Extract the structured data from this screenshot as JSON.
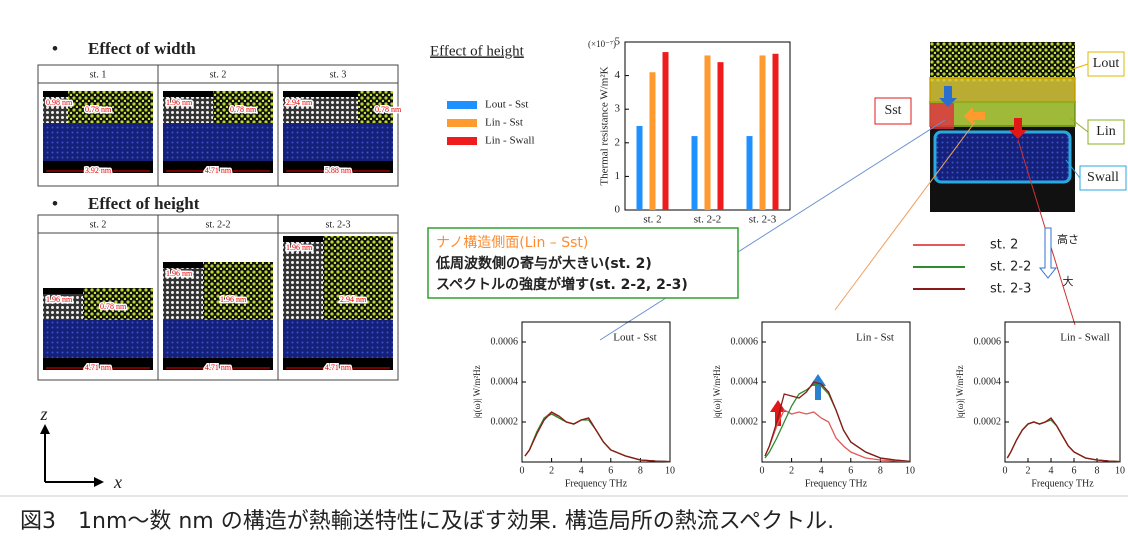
{
  "figure": {
    "width_section": {
      "title": "Effect of width",
      "columns": [
        {
          "label": "st. 1",
          "dims": [
            "0.98 nm",
            "0.78 nm",
            "3.92 nm"
          ]
        },
        {
          "label": "st. 2",
          "dims": [
            "1.96 nm",
            "0.78 nm",
            "4.71 nm"
          ]
        },
        {
          "label": "st. 3",
          "dims": [
            "2.94 nm",
            "0.78 nm",
            "5.88 nm"
          ]
        }
      ]
    },
    "height_section": {
      "title": "Effect of height",
      "columns": [
        {
          "label": "st. 2",
          "dims": [
            "1.96 nm",
            "0.78 nm",
            "4.71 nm"
          ]
        },
        {
          "label": "st. 2-2",
          "dims": [
            "1.96 nm",
            "1.96 nm",
            "4.71 nm"
          ]
        },
        {
          "label": "st. 2-3",
          "dims": [
            "1.96 nm",
            "2.94 nm",
            "4.71 nm"
          ]
        }
      ]
    },
    "axis_z": "z",
    "axis_x": "x",
    "structure_labels": {
      "out": "Lout",
      "in": "Lin",
      "st": "Sst",
      "wall": "Swall"
    },
    "annotation": [
      "ナノ構造側面(Lin – Sst)",
      "低周波数側の寄与が大きい(st. 2)",
      "スペクトルの強度が増す(st. 2-2, 2-3)"
    ],
    "height_arrow": [
      "高さ",
      "大"
    ],
    "caption": "図3　1nm〜数 nm の構造が熱輸送特性に及ぼす効果. 構造局所の熱流スペクトル."
  },
  "chart_data": [
    {
      "type": "bar",
      "title": "Effect of height",
      "y_label": "Thermal resistance W/m²K",
      "y_multiplier": "(×10⁻⁷)",
      "categories": [
        "st. 2",
        "st. 2-2",
        "st. 2-3"
      ],
      "series": [
        {
          "name": "Lout - Sst",
          "color": "#1e90ff",
          "values": [
            2.5,
            2.2,
            2.2
          ]
        },
        {
          "name": "Lin - Sst",
          "color": "#ff9a2e",
          "values": [
            4.1,
            4.6,
            4.6
          ]
        },
        {
          "name": "Lin - Swall",
          "color": "#ee1c1c",
          "values": [
            4.7,
            4.4,
            4.65
          ]
        }
      ],
      "ylim": [
        0,
        5
      ],
      "yticks": [
        0,
        1,
        2,
        3,
        4,
        5
      ]
    },
    {
      "type": "line",
      "title": "Lout - Sst",
      "x_label": "Frequency THz",
      "y_label": "|q(ω)| W/m²Hz",
      "x": [
        0.2,
        0.5,
        1,
        1.5,
        2,
        2.5,
        3,
        3.5,
        4,
        4.5,
        5,
        5.5,
        6,
        7,
        8,
        9,
        10
      ],
      "series": [
        {
          "name": "st. 2",
          "color": "#e05a5a",
          "values": [
            3e-05,
            6e-05,
            0.00015,
            0.00022,
            0.00025,
            0.00022,
            0.0002,
            0.00019,
            0.00021,
            0.00022,
            0.00016,
            0.0001,
            6e-05,
            3e-05,
            1e-05,
            5e-06,
            2e-06
          ]
        },
        {
          "name": "st. 2-2",
          "color": "#2e8b2e",
          "values": [
            3e-05,
            6e-05,
            0.00015,
            0.00022,
            0.00024,
            0.00022,
            0.0002,
            0.00019,
            0.00021,
            0.00021,
            0.00016,
            0.0001,
            6e-05,
            3e-05,
            1e-05,
            5e-06,
            2e-06
          ]
        },
        {
          "name": "st. 2-3",
          "color": "#8b1a1a",
          "values": [
            3e-05,
            6e-05,
            0.00014,
            0.00021,
            0.00025,
            0.00023,
            0.0002,
            0.00019,
            0.00021,
            0.00022,
            0.00016,
            0.0001,
            6e-05,
            3e-05,
            1e-05,
            5e-06,
            2e-06
          ]
        }
      ],
      "xlim": [
        0,
        10
      ],
      "ylim": [
        0,
        0.0007
      ],
      "xticks": [
        0,
        2,
        4,
        6,
        8,
        10
      ],
      "yticks": [
        0.0002,
        0.0004,
        0.0006
      ]
    },
    {
      "type": "line",
      "title": "Lin - Sst",
      "x_label": "Frequency THz",
      "y_label": "|q(ω)| W/m²Hz",
      "x": [
        0.2,
        0.5,
        1,
        1.5,
        2,
        2.5,
        3,
        3.5,
        4,
        4.5,
        5,
        5.5,
        6,
        7,
        8,
        9,
        10
      ],
      "series": [
        {
          "color": "#e05a5a",
          "values": [
            3e-05,
            8e-05,
            0.00018,
            0.00026,
            0.00024,
            0.00025,
            0.00024,
            0.00025,
            0.00022,
            0.0002,
            0.00012,
            8e-05,
            5e-05,
            2e-05,
            1e-05,
            5e-06,
            2e-06
          ]
        },
        {
          "color": "#2e8b2e",
          "values": [
            2e-05,
            5e-05,
            0.00012,
            0.0002,
            0.00028,
            0.00034,
            0.00036,
            0.00039,
            0.00038,
            0.00034,
            0.00026,
            0.00016,
            0.0001,
            5e-05,
            2e-05,
            1e-05,
            3e-06
          ]
        },
        {
          "color": "#8b1a1a",
          "values": [
            3e-05,
            8e-05,
            0.0002,
            0.00034,
            0.00033,
            0.00032,
            0.00035,
            0.0004,
            0.00039,
            0.00035,
            0.00026,
            0.00016,
            0.0001,
            5e-05,
            2e-05,
            1e-05,
            3e-06
          ]
        }
      ],
      "xlim": [
        0,
        10
      ],
      "ylim": [
        0,
        0.0007
      ],
      "xticks": [
        0,
        2,
        4,
        6,
        8,
        10
      ],
      "yticks": [
        0.0002,
        0.0004,
        0.0006
      ]
    },
    {
      "type": "line",
      "title": "Lin - Swall",
      "x_label": "Frequency THz",
      "y_label": "|q(ω)| W/m²Hz",
      "x": [
        0.2,
        0.5,
        1,
        1.5,
        2,
        2.5,
        3,
        3.5,
        4,
        4.5,
        5,
        5.5,
        6,
        7,
        8,
        9,
        10
      ],
      "series": [
        {
          "color": "#e05a5a",
          "values": [
            2e-05,
            5e-05,
            0.00011,
            0.00016,
            0.00019,
            0.0002,
            0.00019,
            0.0002,
            0.00022,
            0.00018,
            0.00013,
            8e-05,
            5e-05,
            2e-05,
            1e-05,
            5e-06,
            2e-06
          ]
        },
        {
          "color": "#2e8b2e",
          "values": [
            2e-05,
            5e-05,
            0.00011,
            0.00016,
            0.00019,
            0.0002,
            0.00019,
            0.0002,
            0.00021,
            0.00018,
            0.00013,
            8e-05,
            5e-05,
            2e-05,
            1e-05,
            5e-06,
            2e-06
          ]
        },
        {
          "color": "#8b1a1a",
          "values": [
            2e-05,
            5e-05,
            0.00011,
            0.00016,
            0.00019,
            0.0002,
            0.00019,
            0.0002,
            0.00022,
            0.00018,
            0.00013,
            8e-05,
            5e-05,
            2e-05,
            1e-05,
            5e-06,
            2e-06
          ]
        }
      ],
      "xlim": [
        0,
        10
      ],
      "ylim": [
        0,
        0.0007
      ],
      "xticks": [
        0,
        2,
        4,
        6,
        8,
        10
      ],
      "yticks": [
        0.0002,
        0.0004,
        0.0006
      ]
    }
  ]
}
